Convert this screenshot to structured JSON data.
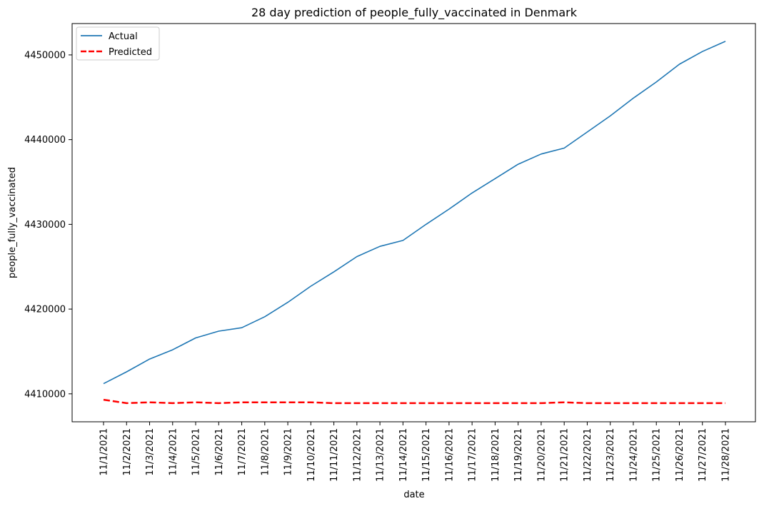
{
  "chart_data": {
    "type": "line",
    "title": "28 day prediction of people_fully_vaccinated in Denmark",
    "xlabel": "date",
    "ylabel": "people_fully_vaccinated",
    "x": [
      "11/1/2021",
      "11/2/2021",
      "11/3/2021",
      "11/4/2021",
      "11/5/2021",
      "11/6/2021",
      "11/7/2021",
      "11/8/2021",
      "11/9/2021",
      "11/10/2021",
      "11/11/2021",
      "11/12/2021",
      "11/13/2021",
      "11/14/2021",
      "11/15/2021",
      "11/16/2021",
      "11/17/2021",
      "11/18/2021",
      "11/19/2021",
      "11/20/2021",
      "11/21/2021",
      "11/22/2021",
      "11/23/2021",
      "11/24/2021",
      "11/25/2021",
      "11/26/2021",
      "11/27/2021",
      "11/28/2021"
    ],
    "yticks": [
      4410000,
      4420000,
      4430000,
      4440000,
      4450000
    ],
    "ylim": [
      4406700,
      4453700
    ],
    "grid": false,
    "legend_position": "top-left",
    "series": [
      {
        "name": "Actual",
        "color": "#1f77b4",
        "style": "solid",
        "values": [
          4411200,
          4412600,
          4414100,
          4415200,
          4416600,
          4417400,
          4417800,
          4419100,
          4420800,
          4422700,
          4424400,
          4426200,
          4427400,
          4428100,
          4430000,
          4431800,
          4433700,
          4435400,
          4437100,
          4438300,
          4439000,
          4440900,
          4442800,
          4444900,
          4446800,
          4448900,
          4450400,
          4451600
        ]
      },
      {
        "name": "Predicted",
        "color": "#ff0000",
        "style": "dashed",
        "values": [
          4409300,
          4408900,
          4409000,
          4408900,
          4409000,
          4408900,
          4409000,
          4409000,
          4409000,
          4409000,
          4408900,
          4408900,
          4408900,
          4408900,
          4408900,
          4408900,
          4408900,
          4408900,
          4408900,
          4408900,
          4409000,
          4408900,
          4408900,
          4408900,
          4408900,
          4408900,
          4408900,
          4408900
        ]
      }
    ]
  }
}
